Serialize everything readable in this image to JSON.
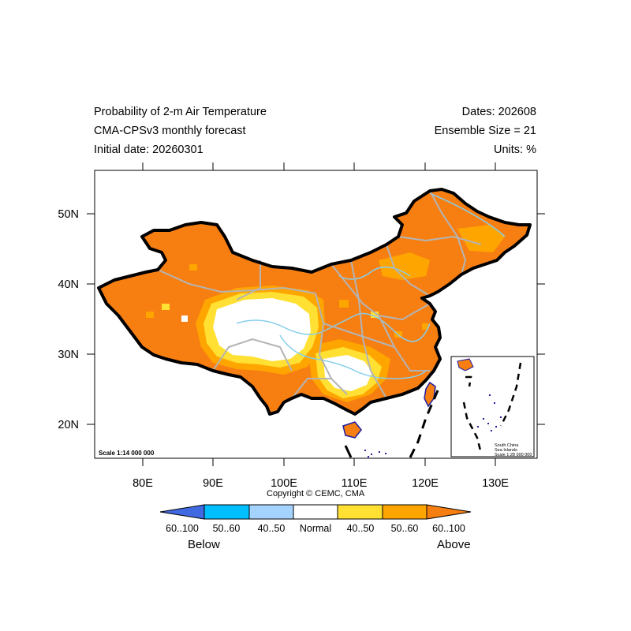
{
  "header": {
    "title_line1": "Probability of 2-m Air Temperature",
    "title_line2": "CMA-CPSv3 monthly forecast",
    "title_line3": "Initial date: 20260301",
    "dates": "Dates: 202608",
    "ensemble": "Ensemble Size = 21",
    "units": "Units: %"
  },
  "axes": {
    "x_ticks": [
      "80E",
      "90E",
      "100E",
      "110E",
      "120E",
      "130E"
    ],
    "y_ticks": [
      "50N",
      "40N",
      "30N",
      "20N"
    ]
  },
  "map": {
    "scale": "Scale 1:14 000 000",
    "inset_line1": "South China",
    "inset_line2": "Sea Islands",
    "inset_scale": "Scale 1:28 000 000"
  },
  "copyright": "Copyright © CEMC, CMA",
  "legend": {
    "categories": [
      "60..100",
      "50..60",
      "40..50",
      "Normal",
      "40..50",
      "50..60",
      "60..100"
    ],
    "colors": [
      "#4169e1",
      "#00bfff",
      "#a4d3ff",
      "#ffffff",
      "#ffe033",
      "#ffa500",
      "#f77f12"
    ],
    "below": "Below",
    "above": "Above"
  }
}
